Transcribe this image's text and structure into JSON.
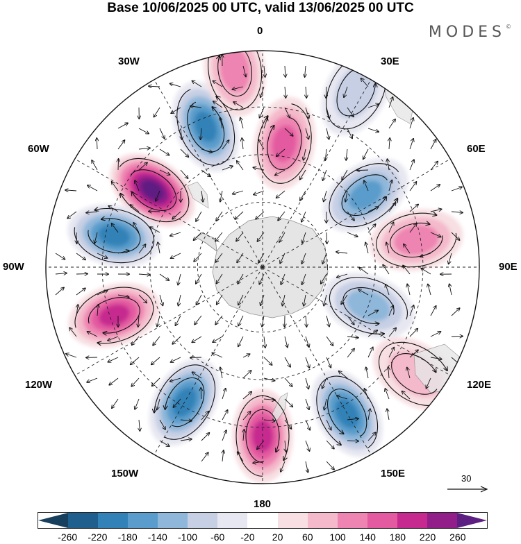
{
  "title": "Base 10/06/2025 00 UTC, valid 13/06/2025 00 UTC",
  "brand": {
    "text": "MODES",
    "mark": "©"
  },
  "longitude_labels": {
    "lon_0": "0",
    "lon_30e": "30E",
    "lon_60e": "60E",
    "lon_90e": "90E",
    "lon_120e": "120E",
    "lon_150e": "150E",
    "lon_180": "180",
    "lon_150w": "150W",
    "lon_120w": "120W",
    "lon_90w": "90W",
    "lon_60w": "60W",
    "lon_30w": "30W"
  },
  "reference_vector": {
    "value": "30"
  },
  "colorbar": {
    "colors": [
      "#17405e",
      "#1f5f8e",
      "#3282b8",
      "#5a9ccb",
      "#8fb7da",
      "#c6cfe4",
      "#e7e7f1",
      "#ffffff",
      "#f7dfe3",
      "#f4b9cb",
      "#ee84b1",
      "#e35aa0",
      "#c62a8f",
      "#921e8a",
      "#5e1f82"
    ],
    "tick_labels": [
      "-260",
      "-220",
      "-180",
      "-140",
      "-100",
      "-60",
      "-20",
      "20",
      "60",
      "100",
      "140",
      "180",
      "220",
      "260"
    ]
  },
  "anomaly_centers": [
    {
      "lon_deg": -55,
      "radius_frac": 0.62,
      "value": 265
    },
    {
      "lon_deg": -22,
      "radius_frac": 0.7,
      "value": -200
    },
    {
      "lon_deg": -78,
      "radius_frac": 0.7,
      "value": -190
    },
    {
      "lon_deg": -108,
      "radius_frac": 0.72,
      "value": 200
    },
    {
      "lon_deg": -150,
      "radius_frac": 0.72,
      "value": -180
    },
    {
      "lon_deg": 180,
      "radius_frac": 0.78,
      "value": 200
    },
    {
      "lon_deg": 150,
      "radius_frac": 0.78,
      "value": -210
    },
    {
      "lon_deg": 125,
      "radius_frac": 0.86,
      "value": 60
    },
    {
      "lon_deg": 110,
      "radius_frac": 0.52,
      "value": -120
    },
    {
      "lon_deg": 80,
      "radius_frac": 0.72,
      "value": 110
    },
    {
      "lon_deg": 55,
      "radius_frac": 0.58,
      "value": -140
    },
    {
      "lon_deg": 10,
      "radius_frac": 0.58,
      "value": 170
    },
    {
      "lon_deg": -8,
      "radius_frac": 0.92,
      "value": 110
    },
    {
      "lon_deg": 28,
      "radius_frac": 0.92,
      "value": -80
    }
  ]
}
